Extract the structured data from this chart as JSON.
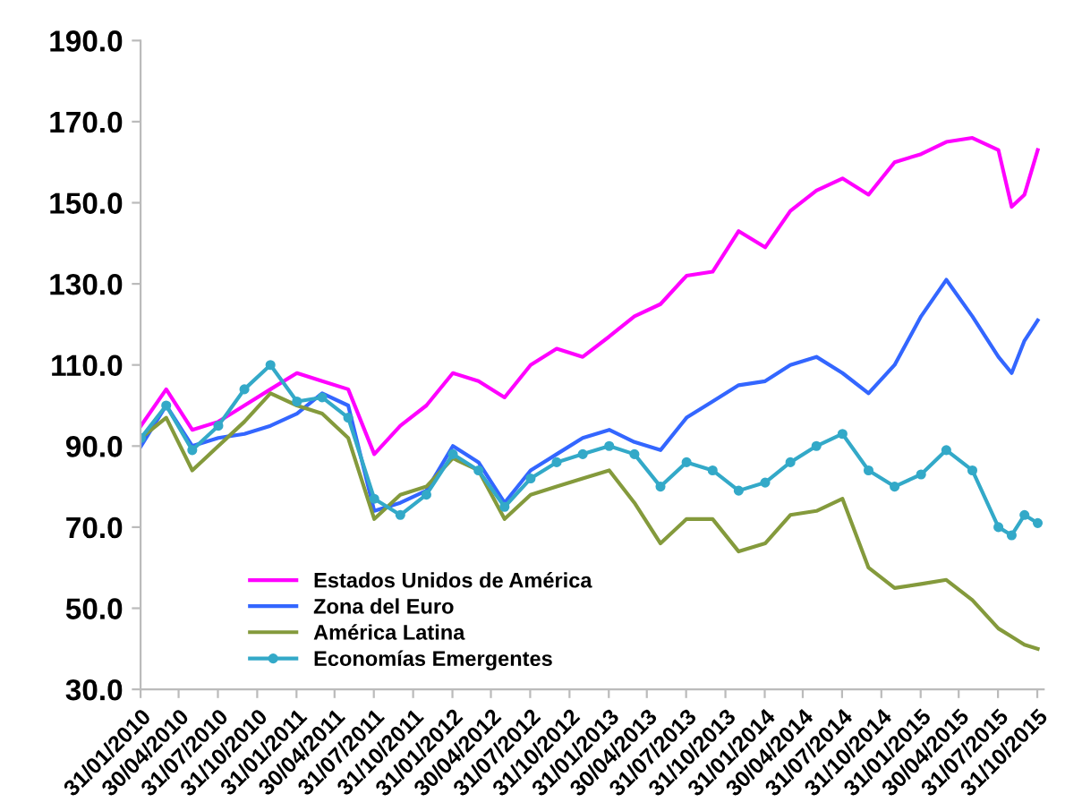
{
  "chart_data": {
    "type": "line",
    "x": [
      "2010-02",
      "2010-04",
      "2010-06",
      "2010-08",
      "2010-10",
      "2010-12",
      "2011-02",
      "2011-04",
      "2011-06",
      "2011-08",
      "2011-10",
      "2011-12",
      "2012-02",
      "2012-04",
      "2012-06",
      "2012-08",
      "2012-10",
      "2012-12",
      "2013-02",
      "2013-04",
      "2013-06",
      "2013-08",
      "2013-10",
      "2013-12",
      "2014-02",
      "2014-04",
      "2014-06",
      "2014-08",
      "2014-10",
      "2014-12",
      "2015-02",
      "2015-04",
      "2015-06",
      "2015-08",
      "2015-09",
      "2015-10",
      "2015-11"
    ],
    "series": [
      {
        "name": "Estados Unidos de América",
        "color": "#ff00ff",
        "values": [
          95,
          104,
          94,
          96,
          100,
          104,
          108,
          106,
          104,
          88,
          95,
          100,
          108,
          106,
          102,
          110,
          114,
          112,
          117,
          122,
          125,
          132,
          133,
          143,
          139,
          148,
          153,
          156,
          152,
          160,
          162,
          165,
          166,
          163,
          149,
          152,
          163
        ]
      },
      {
        "name": "Zona del Euro",
        "color": "#3366ff",
        "values": [
          90,
          100,
          90,
          92,
          93,
          95,
          98,
          103,
          100,
          74,
          76,
          79,
          90,
          86,
          76,
          84,
          88,
          92,
          94,
          91,
          89,
          97,
          101,
          105,
          106,
          110,
          112,
          108,
          103,
          110,
          122,
          131,
          122,
          112,
          108,
          116,
          121
        ]
      },
      {
        "name": "América Latina",
        "color": "#849a3c",
        "values": [
          92,
          97,
          84,
          90,
          96,
          103,
          100,
          98,
          92,
          72,
          78,
          80,
          87,
          84,
          72,
          78,
          80,
          82,
          84,
          76,
          66,
          72,
          72,
          64,
          66,
          73,
          74,
          77,
          60,
          55,
          56,
          57,
          52,
          45,
          43,
          41,
          40
        ]
      },
      {
        "name": "Economías Emergentes",
        "color": "#33a9c8",
        "marker": "circle",
        "values": [
          92,
          100,
          89,
          95,
          104,
          110,
          101,
          102,
          97,
          77,
          73,
          78,
          88,
          84,
          75,
          82,
          86,
          88,
          90,
          88,
          80,
          86,
          84,
          79,
          81,
          86,
          90,
          93,
          84,
          80,
          83,
          89,
          84,
          70,
          68,
          73,
          71
        ]
      }
    ],
    "xlim": [
      "2010-01-31",
      "2015-11-15"
    ],
    "xticks": [
      {
        "value": "2010-01-31",
        "label": "31/01/2010"
      },
      {
        "value": "2010-04-30",
        "label": "30/04/2010"
      },
      {
        "value": "2010-07-31",
        "label": "31/07/2010"
      },
      {
        "value": "2010-10-31",
        "label": "31/10/2010"
      },
      {
        "value": "2011-01-31",
        "label": "31/01/2011"
      },
      {
        "value": "2011-04-30",
        "label": "30/04/2011"
      },
      {
        "value": "2011-07-31",
        "label": "31/07/2011"
      },
      {
        "value": "2011-10-31",
        "label": "31/10/2011"
      },
      {
        "value": "2012-01-31",
        "label": "31/01/2012"
      },
      {
        "value": "2012-04-30",
        "label": "30/04/2012"
      },
      {
        "value": "2012-07-31",
        "label": "31/07/2012"
      },
      {
        "value": "2012-10-31",
        "label": "31/10/2012"
      },
      {
        "value": "2013-01-31",
        "label": "31/01/2013"
      },
      {
        "value": "2013-04-30",
        "label": "30/04/2013"
      },
      {
        "value": "2013-07-31",
        "label": "31/07/2013"
      },
      {
        "value": "2013-10-31",
        "label": "31/10/2013"
      },
      {
        "value": "2014-01-31",
        "label": "31/01/2014"
      },
      {
        "value": "2014-04-30",
        "label": "30/04/2014"
      },
      {
        "value": "2014-07-31",
        "label": "31/07/2014"
      },
      {
        "value": "2014-10-31",
        "label": "31/10/2014"
      },
      {
        "value": "2015-01-31",
        "label": "31/01/2015"
      },
      {
        "value": "2015-04-30",
        "label": "30/04/2015"
      },
      {
        "value": "2015-07-31",
        "label": "31/07/2015"
      },
      {
        "value": "2015-10-31",
        "label": "31/10/2015"
      }
    ],
    "ylim": [
      30,
      190
    ],
    "yticks": [
      {
        "value": 30,
        "label": "30.0"
      },
      {
        "value": 50,
        "label": "50.0"
      },
      {
        "value": 70,
        "label": "70.0"
      },
      {
        "value": 90,
        "label": "90.0"
      },
      {
        "value": 110,
        "label": "110.0"
      },
      {
        "value": 130,
        "label": "130.0"
      },
      {
        "value": 150,
        "label": "150.0"
      },
      {
        "value": 170,
        "label": "170.0"
      },
      {
        "value": 190,
        "label": "190.0"
      }
    ],
    "legend": "bottom left",
    "line_style": "solid"
  }
}
